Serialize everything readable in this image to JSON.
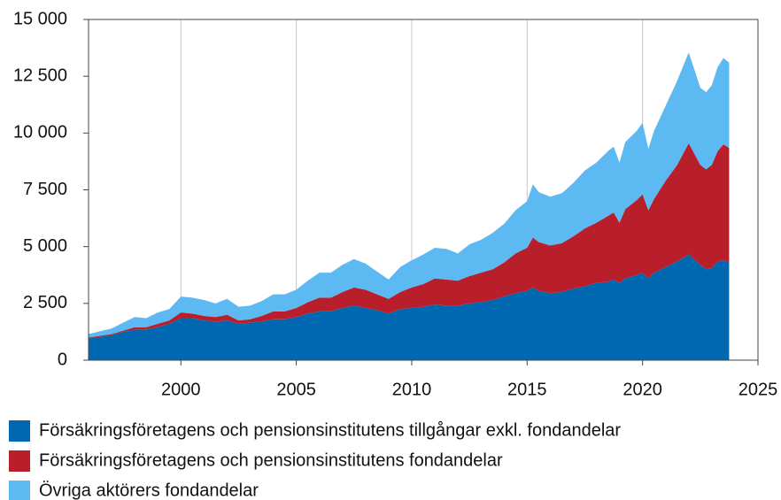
{
  "chart_data": {
    "type": "stacked-area",
    "x": [
      1996,
      1997,
      1997.5,
      1998,
      1998.5,
      1999,
      1999.5,
      2000,
      2000.5,
      2001,
      2001.5,
      2002,
      2002.5,
      2003,
      2003.5,
      2004,
      2004.5,
      2005,
      2005.5,
      2006,
      2006.5,
      2007,
      2007.5,
      2008,
      2008.5,
      2009,
      2009.5,
      2010,
      2010.5,
      2011,
      2011.5,
      2012,
      2012.5,
      2013,
      2013.5,
      2014,
      2014.5,
      2015,
      2015.25,
      2015.5,
      2016,
      2016.5,
      2017,
      2017.5,
      2018,
      2018.5,
      2018.75,
      2019,
      2019.25,
      2019.75,
      2020,
      2020.25,
      2020.5,
      2021,
      2021.5,
      2022,
      2022.5,
      2022.75,
      2023,
      2023.25,
      2023.5,
      2023.75
    ],
    "series": [
      {
        "name": "Försäkringsföretagens och pensionsinstitutens tillgångar exkl. fondandelar",
        "color": "#0067b1",
        "values": [
          950,
          1100,
          1250,
          1350,
          1350,
          1450,
          1600,
          1850,
          1850,
          1750,
          1700,
          1750,
          1600,
          1650,
          1700,
          1800,
          1800,
          1900,
          2050,
          2150,
          2150,
          2300,
          2400,
          2300,
          2200,
          2050,
          2250,
          2300,
          2350,
          2450,
          2400,
          2400,
          2500,
          2550,
          2650,
          2800,
          2950,
          3050,
          3200,
          3050,
          2950,
          3000,
          3150,
          3250,
          3400,
          3450,
          3550,
          3400,
          3600,
          3750,
          3850,
          3600,
          3850,
          4100,
          4350,
          4650,
          4200,
          4000,
          4050,
          4350,
          4400,
          4300
        ]
      },
      {
        "name": "Försäkringsföretagens och pensionsinstitutens fondandelar",
        "color": "#b81f2b",
        "values": [
          50,
          50,
          50,
          100,
          100,
          150,
          150,
          250,
          200,
          200,
          200,
          250,
          150,
          150,
          250,
          350,
          350,
          400,
          500,
          600,
          600,
          700,
          800,
          800,
          700,
          650,
          750,
          900,
          1000,
          1150,
          1150,
          1100,
          1200,
          1300,
          1350,
          1500,
          1750,
          1900,
          2200,
          2150,
          2100,
          2150,
          2300,
          2550,
          2650,
          2900,
          2950,
          2650,
          3050,
          3300,
          3450,
          3000,
          3250,
          3800,
          4250,
          4900,
          4400,
          4400,
          4550,
          4850,
          5100,
          5050
        ]
      },
      {
        "name": "Övriga aktörers fondandelar",
        "color": "#5db9f1",
        "values": [
          150,
          250,
          350,
          450,
          400,
          500,
          500,
          700,
          700,
          700,
          600,
          700,
          600,
          600,
          650,
          750,
          750,
          800,
          950,
          1100,
          1100,
          1200,
          1250,
          1150,
          1000,
          850,
          1100,
          1200,
          1300,
          1350,
          1350,
          1200,
          1400,
          1450,
          1600,
          1700,
          1900,
          2050,
          2350,
          2200,
          2150,
          2200,
          2350,
          2550,
          2650,
          2850,
          2900,
          2650,
          2950,
          3050,
          3150,
          2700,
          3000,
          3300,
          3700,
          4000,
          3400,
          3400,
          3500,
          3700,
          3800,
          3750
        ]
      }
    ],
    "xlim": [
      1996,
      2025
    ],
    "xticks": [
      2000,
      2005,
      2010,
      2015,
      2020,
      2025
    ],
    "ylim": [
      0,
      15000
    ],
    "yticks": [
      0,
      {
        "value": 2500,
        "label": "2 500"
      },
      {
        "value": 5000,
        "label": "5 000"
      },
      {
        "value": 7500,
        "label": "7 500"
      },
      {
        "value": 10000,
        "label": "10 000"
      },
      {
        "value": 12500,
        "label": "12 500"
      },
      {
        "value": 15000,
        "label": "15 000"
      }
    ],
    "grid": "x"
  }
}
